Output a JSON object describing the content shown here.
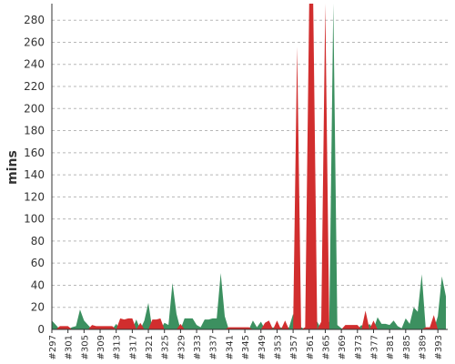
{
  "chart_data": {
    "type": "area",
    "ylabel": "mins",
    "ylim": [
      0,
      295
    ],
    "yticks": [
      0,
      20,
      40,
      60,
      80,
      100,
      120,
      140,
      160,
      180,
      200,
      220,
      240,
      260,
      280
    ],
    "grid": "horizontal dashed",
    "x": [
      297,
      298,
      299,
      300,
      301,
      302,
      303,
      304,
      305,
      306,
      307,
      308,
      309,
      310,
      311,
      312,
      313,
      314,
      315,
      316,
      317,
      318,
      319,
      320,
      321,
      322,
      323,
      324,
      325,
      326,
      327,
      328,
      329,
      330,
      331,
      332,
      333,
      334,
      335,
      336,
      337,
      338,
      339,
      340,
      341,
      342,
      343,
      344,
      345,
      346,
      347,
      348,
      349,
      350,
      351,
      352,
      353,
      354,
      355,
      356,
      357,
      358,
      359,
      360,
      361,
      362,
      363,
      364,
      365,
      366,
      367,
      368,
      369,
      370,
      371,
      372,
      373,
      374,
      375,
      376,
      377,
      378,
      379,
      380,
      381,
      382,
      383,
      384,
      385,
      386,
      387,
      388,
      389,
      390,
      391,
      392,
      393,
      394,
      395
    ],
    "xtick_labels": [
      "#297",
      "#301",
      "#305",
      "#309",
      "#313",
      "#317",
      "#321",
      "#325",
      "#329",
      "#333",
      "#337",
      "#341",
      "#345",
      "#349",
      "#353",
      "#357",
      "#361",
      "#365",
      "#369",
      "#373",
      "#377",
      "#381",
      "#385",
      "#389",
      "#393"
    ],
    "values": [
      8,
      4,
      3,
      3,
      3,
      2,
      3,
      18,
      8,
      4,
      4,
      3,
      3,
      3,
      3,
      3,
      5,
      10,
      9,
      10,
      10,
      9,
      6,
      8,
      24,
      9,
      9,
      10,
      6,
      4,
      42,
      14,
      5,
      10,
      10,
      10,
      4,
      2,
      9,
      9,
      10,
      10,
      51,
      12,
      2,
      2,
      2,
      2,
      2,
      2,
      8,
      2,
      7,
      6,
      8,
      2,
      8,
      2,
      8,
      2,
      14,
      256,
      2,
      2,
      300,
      300,
      7,
      7,
      300,
      7,
      300,
      4,
      1,
      4,
      4,
      4,
      4,
      4,
      17,
      5,
      8,
      11,
      5,
      5,
      4,
      8,
      3,
      1,
      10,
      5,
      20,
      16,
      50,
      2,
      2,
      13,
      12,
      48,
      30
    ],
    "status": [
      "g",
      "g",
      "r",
      "r",
      "r",
      "g",
      "g",
      "g",
      "g",
      "g",
      "r",
      "r",
      "r",
      "r",
      "r",
      "r",
      "g",
      "r",
      "r",
      "r",
      "r",
      "g",
      "r",
      "g",
      "g",
      "r",
      "r",
      "r",
      "g",
      "g",
      "g",
      "g",
      "r",
      "g",
      "g",
      "g",
      "g",
      "g",
      "g",
      "g",
      "g",
      "g",
      "g",
      "g",
      "r",
      "r",
      "r",
      "r",
      "r",
      "r",
      "g",
      "g",
      "g",
      "r",
      "r",
      "g",
      "r",
      "g",
      "r",
      "g",
      "g",
      "r",
      "g",
      "r",
      "r",
      "r",
      "g",
      "r",
      "r",
      "g",
      "g",
      "g",
      "g",
      "r",
      "r",
      "r",
      "r",
      "g",
      "r",
      "g",
      "r",
      "g",
      "g",
      "g",
      "g",
      "g",
      "g",
      "g",
      "g",
      "g",
      "g",
      "g",
      "g",
      "r",
      "r",
      "r",
      "g",
      "g",
      "g"
    ],
    "colors": {
      "pass": "#3c9060",
      "fail": "#d12e2e"
    },
    "series": [
      {
        "key": "g",
        "color": "#3c9060"
      },
      {
        "key": "r",
        "color": "#d12e2e"
      }
    ]
  }
}
